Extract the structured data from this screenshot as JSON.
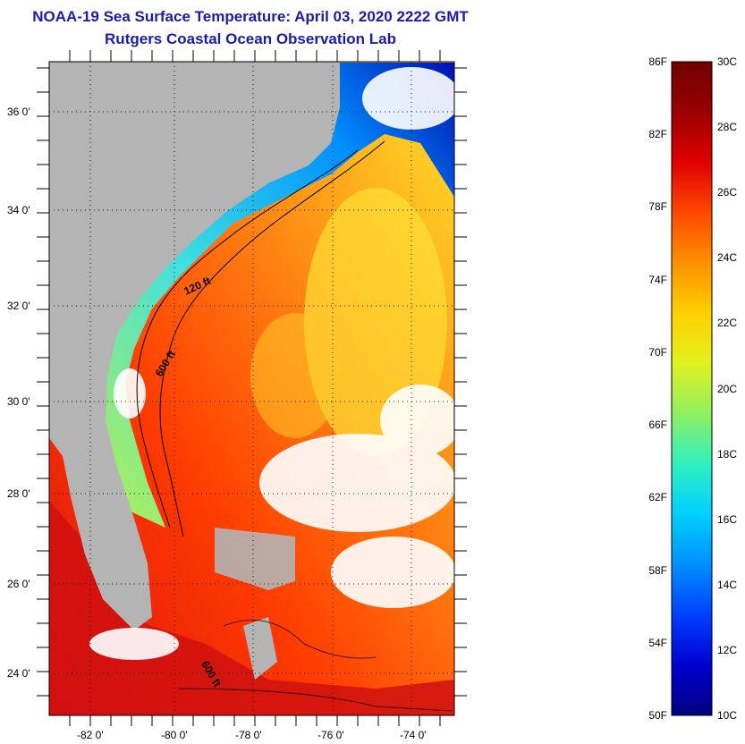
{
  "header": {
    "title": "NOAA-19 Sea Surface Temperature:  April 03, 2020 2222 GMT",
    "subtitle": "Rutgers Coastal Ocean Observation Lab"
  },
  "map": {
    "lat_labels": [
      "36 0'",
      "34 0'",
      "32 0'",
      "30 0'",
      "28 0'",
      "26 0'",
      "24 0'"
    ],
    "lon_labels": [
      "-82 0'",
      "-80 0'",
      "-78 0'",
      "-76 0'",
      "-74 0'"
    ],
    "contour_labels": [
      "120 ft",
      "600 ft",
      "600 ft"
    ],
    "colors": {
      "land": "#b4b4b4",
      "cloud": "#ffffff"
    }
  },
  "colorbar": {
    "f_labels": [
      "86F",
      "82F",
      "78F",
      "74F",
      "70F",
      "66F",
      "62F",
      "58F",
      "54F",
      "50F"
    ],
    "c_labels": [
      "30C",
      "28C",
      "26C",
      "24C",
      "22C",
      "20C",
      "18C",
      "16C",
      "14C",
      "12C",
      "10C"
    ],
    "colors": [
      "#000080",
      "#0000d0",
      "#0040ff",
      "#0090ff",
      "#00d0ff",
      "#30f0c0",
      "#90f060",
      "#e0f020",
      "#ffd000",
      "#ff9000",
      "#ff4800",
      "#e00000",
      "#9a0000",
      "#700000"
    ]
  }
}
